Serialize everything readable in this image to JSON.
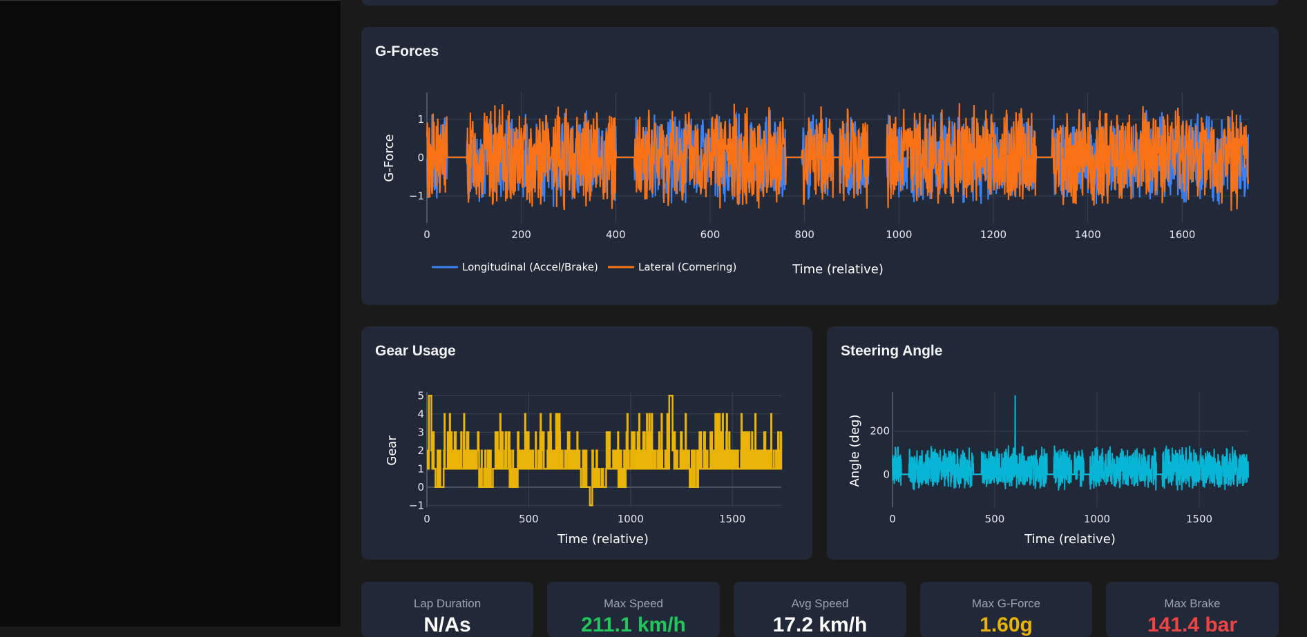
{
  "colors": {
    "longitudinal": "#3b82f6",
    "lateral": "#f97316",
    "gear": "#eab308",
    "steering": "#06b6d4",
    "max_speed": "#22c55e",
    "avg_speed": "#ffffff",
    "max_g": "#eab308",
    "max_brake": "#ef4444"
  },
  "gforces": {
    "title": "G-Forces"
  },
  "gear": {
    "title": "Gear Usage"
  },
  "steering": {
    "title": "Steering Angle"
  },
  "stats": [
    {
      "label": "Lap Duration",
      "value": "N/As",
      "color_key": "avg_speed"
    },
    {
      "label": "Max Speed",
      "value": "211.1 km/h",
      "color_key": "max_speed"
    },
    {
      "label": "Avg Speed",
      "value": "17.2 km/h",
      "color_key": "avg_speed"
    },
    {
      "label": "Max G-Force",
      "value": "1.60g",
      "color_key": "max_g"
    },
    {
      "label": "Max Brake",
      "value": "141.4 bar",
      "color_key": "max_brake"
    }
  ],
  "chart_data": [
    {
      "type": "line",
      "title": "G-Forces",
      "xlabel": "Time (relative)",
      "ylabel": "G-Force",
      "xlim": [
        0,
        1740
      ],
      "ylim": [
        -1.7,
        1.7
      ],
      "xticks": [
        0,
        200,
        400,
        600,
        800,
        1000,
        1200,
        1400,
        1600
      ],
      "xtick_labels": [
        "0",
        "200",
        "400",
        "600",
        "800",
        "1000",
        "1200",
        "1400",
        "1600"
      ],
      "yticks": [
        -1,
        0,
        1
      ],
      "ytick_labels": [
        "−1",
        "0",
        "1"
      ],
      "grid": true,
      "legend": "bottom-left",
      "active_segments": [
        [
          0,
          42
        ],
        [
          85,
          260
        ],
        [
          265,
          400
        ],
        [
          440,
          760
        ],
        [
          795,
          860
        ],
        [
          875,
          935
        ],
        [
          975,
          1290
        ],
        [
          1325,
          1740
        ]
      ],
      "series": [
        {
          "name": "Longitudinal (Accel/Brake)",
          "color_key": "longitudinal",
          "amplitude": 1.3,
          "seed": 7
        },
        {
          "name": "Lateral (Cornering)",
          "color_key": "lateral",
          "amplitude": 1.45,
          "seed": 13
        }
      ]
    },
    {
      "type": "line",
      "title": "Gear Usage",
      "xlabel": "Time (relative)",
      "ylabel": "Gear",
      "xlim": [
        0,
        1740
      ],
      "ylim": [
        -1.1,
        5.2
      ],
      "xticks": [
        0,
        500,
        1000,
        1500
      ],
      "xtick_labels": [
        "0",
        "500",
        "1000",
        "1500"
      ],
      "yticks": [
        -1,
        0,
        1,
        2,
        3,
        4,
        5
      ],
      "ytick_labels": [
        "−1",
        "0",
        "1",
        "2",
        "3",
        "4",
        "5"
      ],
      "grid": true,
      "zero_segments": [
        [
          42,
          80
        ],
        [
          255,
          325
        ],
        [
          405,
          445
        ],
        [
          755,
          800
        ],
        [
          810,
          880
        ],
        [
          940,
          975
        ],
        [
          1290,
          1330
        ]
      ],
      "reverse_at": [
        800,
        810
      ],
      "peaks_5": [
        [
          10,
          20
        ],
        [
          1190,
          1205
        ]
      ],
      "series": [
        {
          "name": "Gear",
          "color_key": "gear",
          "seed": 21
        }
      ]
    },
    {
      "type": "line",
      "title": "Steering Angle",
      "xlabel": "Time (relative)",
      "ylabel": "Angle (deg)",
      "xlim": [
        0,
        1740
      ],
      "ylim": [
        -150,
        380
      ],
      "xticks": [
        0,
        500,
        1000,
        1500
      ],
      "xtick_labels": [
        "0",
        "500",
        "1000",
        "1500"
      ],
      "yticks": [
        0,
        200
      ],
      "ytick_labels": [
        "0",
        "200"
      ],
      "grid": true,
      "active_segments": [
        [
          0,
          42
        ],
        [
          80,
          395
        ],
        [
          435,
          755
        ],
        [
          790,
          875
        ],
        [
          890,
          935
        ],
        [
          965,
          1290
        ],
        [
          1320,
          1740
        ]
      ],
      "spike": {
        "x": 600,
        "y": 365
      },
      "series": [
        {
          "name": "Steering",
          "color_key": "steering",
          "seed": 33
        }
      ]
    }
  ]
}
